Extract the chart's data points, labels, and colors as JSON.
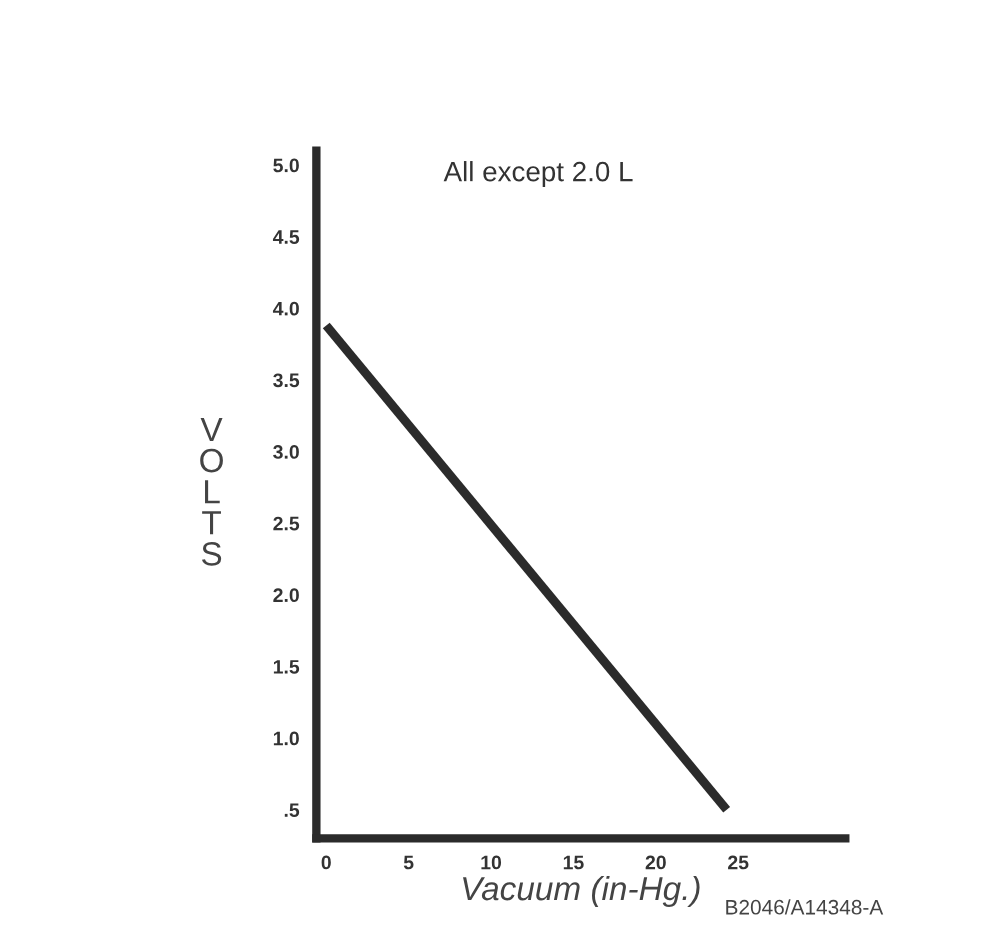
{
  "chart_data": {
    "type": "line",
    "title": "All except 2.0 L",
    "xlabel": "Vacuum (in-Hg.)",
    "ylabel": "VOLTS",
    "x": [
      0,
      24.3
    ],
    "series": [
      {
        "color": "#2b2b2b",
        "values": [
          3.88,
          0.5
        ]
      }
    ],
    "xlim": [
      -0.6,
      31.5
    ],
    "ylim": [
      0.3,
      5.1
    ],
    "xticks": [
      0,
      5,
      10,
      15,
      20,
      25
    ],
    "yticks": [
      {
        "value": 0.5,
        "label": ".5"
      },
      {
        "value": 1.0,
        "label": "1.0"
      },
      {
        "value": 1.5,
        "label": "1.5"
      },
      {
        "value": 2.0,
        "label": "2.0"
      },
      {
        "value": 2.5,
        "label": "2.5"
      },
      {
        "value": 3.0,
        "label": "3.0"
      },
      {
        "value": 3.5,
        "label": "3.5"
      },
      {
        "value": 4.0,
        "label": "4.0"
      },
      {
        "value": 4.5,
        "label": "4.5"
      },
      {
        "value": 5.0,
        "label": "5.0"
      }
    ],
    "grid": false,
    "legend": false,
    "marker": "none",
    "line_style": "solid",
    "annotations": [
      "B2046/A14348-A"
    ]
  }
}
